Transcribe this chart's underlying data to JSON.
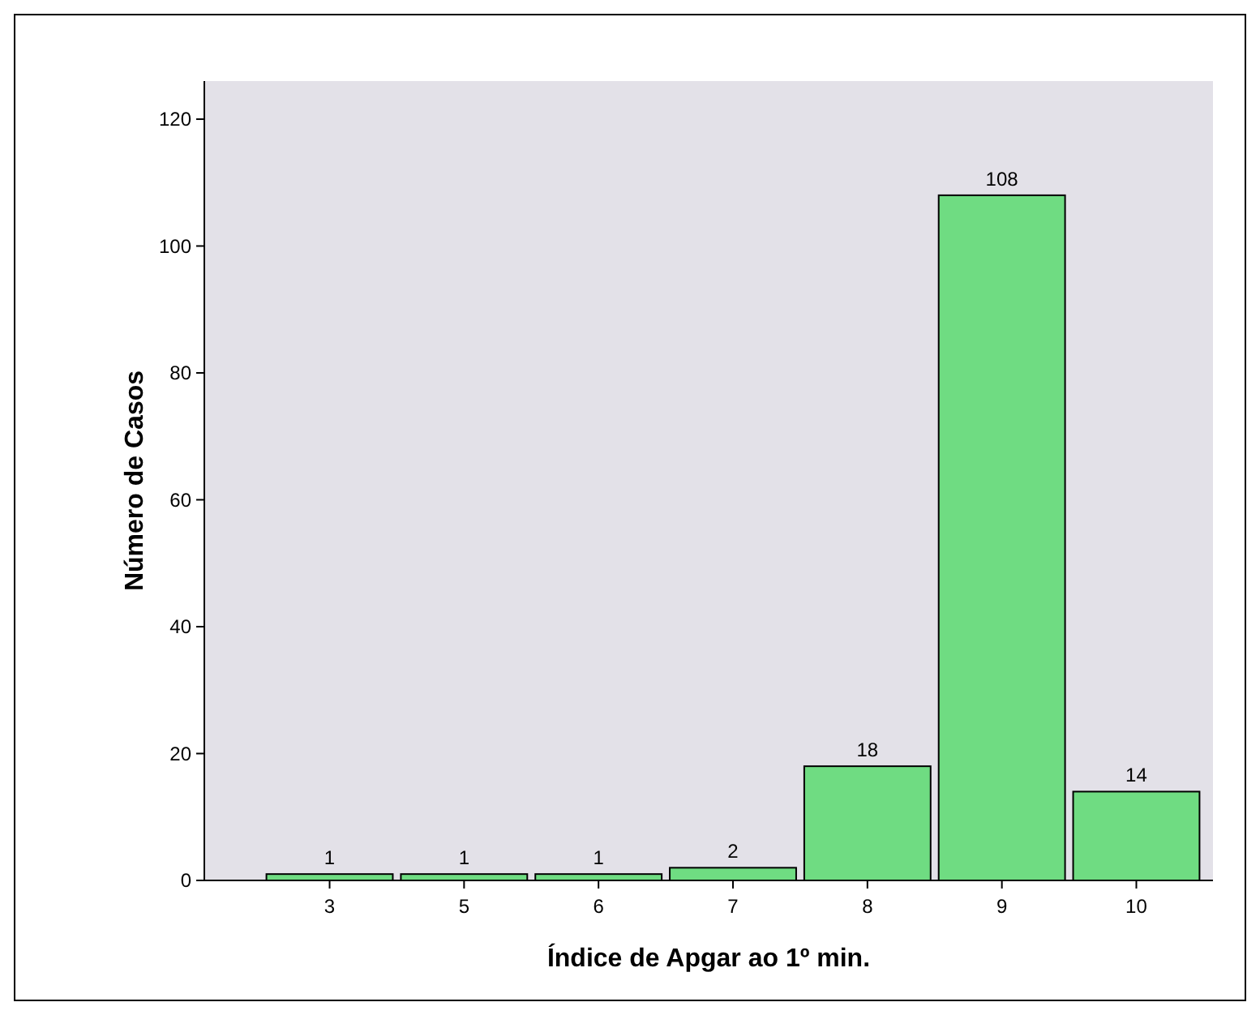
{
  "chart_data": {
    "type": "bar",
    "xlabel": "Índice de Apgar ao 1º min.",
    "ylabel": "Número de Casos",
    "categories": [
      "3",
      "5",
      "6",
      "7",
      "8",
      "9",
      "10"
    ],
    "values": [
      1,
      1,
      1,
      2,
      18,
      108,
      14
    ],
    "color": "#6fdc82",
    "ylim": [
      0,
      126
    ],
    "yticks": [
      0,
      20,
      40,
      60,
      80,
      100,
      120
    ],
    "data_labels": true
  }
}
